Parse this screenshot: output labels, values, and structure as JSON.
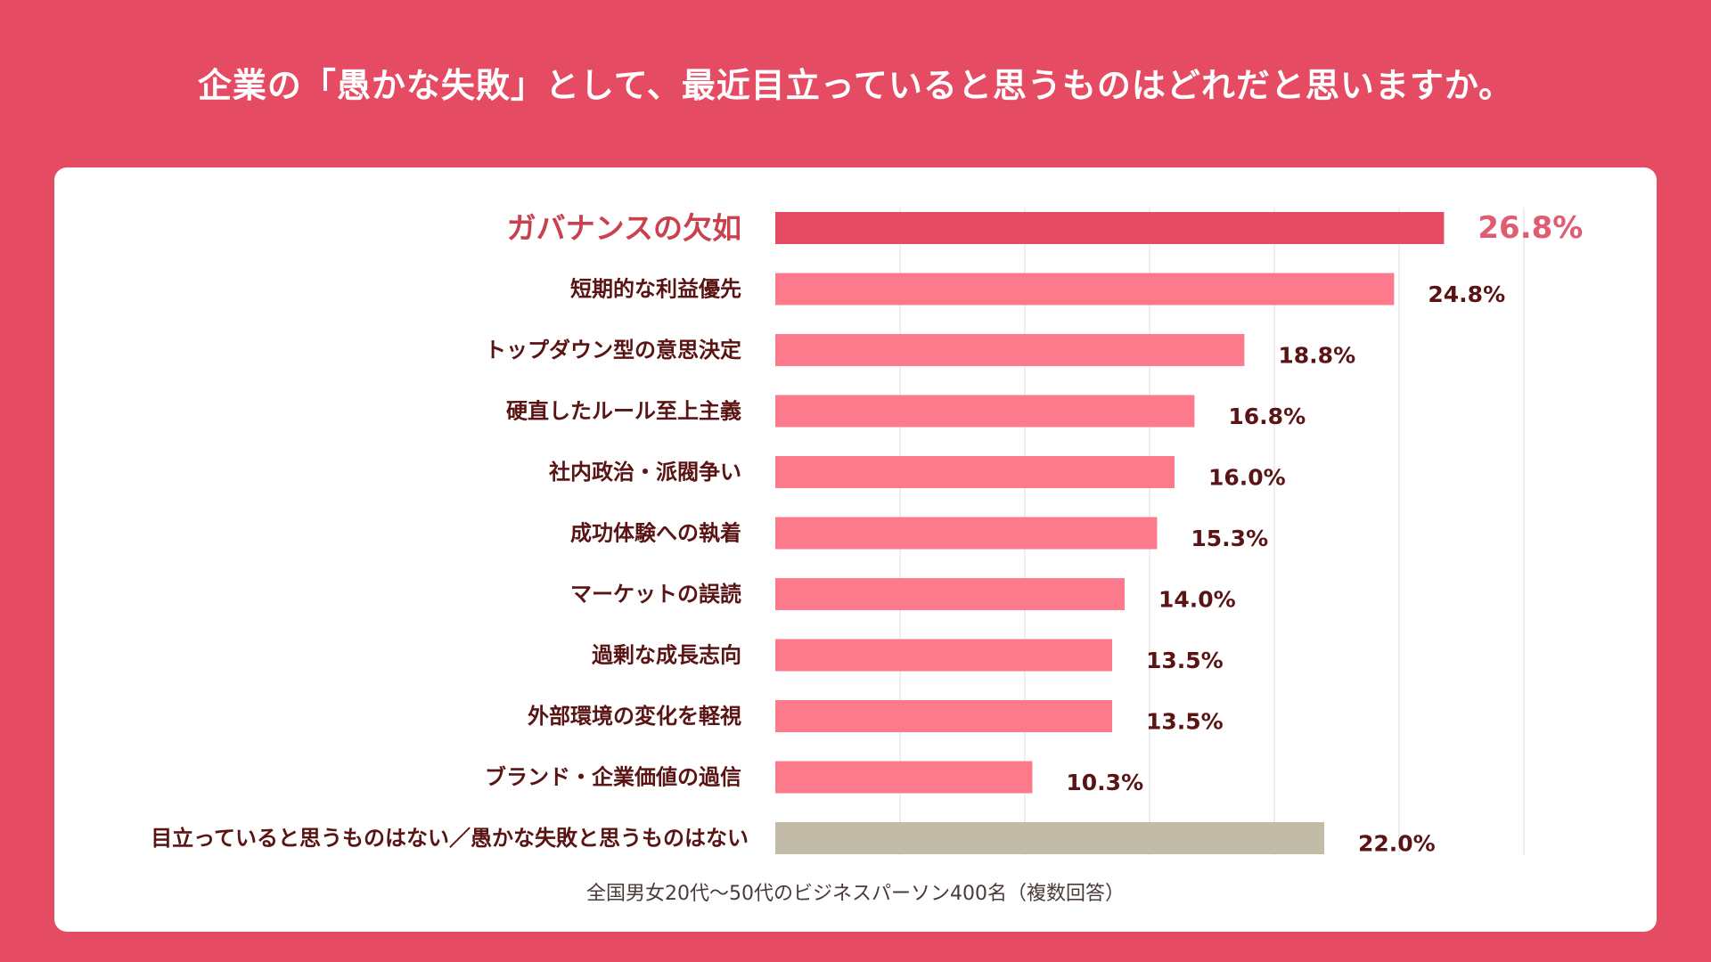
{
  "title": "企業の「愚かな失敗」として、最近目立っていると思うものはどれだと思いますか。",
  "footnote": "全国男女20代〜50代のビジネスパーソン400名（複数回答）",
  "colors": {
    "background": "#e54b63",
    "highlight_bar": "#e54b63",
    "bar": "#fc7a8c",
    "none_bar": "#c2bba8",
    "label_dark": "#5a1414",
    "highlight_label": "#c9414f",
    "highlight_value": "#e05c73",
    "grid": "#dcdcdc"
  },
  "chart_data": {
    "type": "bar",
    "orientation": "horizontal",
    "title": "企業の「愚かな失敗」として、最近目立っていると思うものはどれだと思いますか。",
    "xlabel": "",
    "ylabel": "",
    "xlim": [
      0,
      30
    ],
    "grid": true,
    "unit": "%",
    "categories": [
      "ガバナンスの欠如",
      "短期的な利益優先",
      "トップダウン型の意思決定",
      "硬直したルール至上主義",
      "社内政治・派閥争い",
      "成功体験への執着",
      "マーケットの誤読",
      "過剰な成長志向",
      "外部環境の変化を軽視",
      "ブランド・企業価値の過信",
      "目立っていると思うものはない／愚かな失敗と思うものはない"
    ],
    "values": [
      26.8,
      24.8,
      18.8,
      16.8,
      16.0,
      15.3,
      14.0,
      13.5,
      13.5,
      10.3,
      22.0
    ],
    "value_labels": [
      "26.8%",
      "24.8%",
      "18.8%",
      "16.8%",
      "16.0%",
      "15.3%",
      "14.0%",
      "13.5%",
      "13.5%",
      "10.3%",
      "22.0%"
    ],
    "highlighted_index": 0,
    "none_index": 10
  }
}
